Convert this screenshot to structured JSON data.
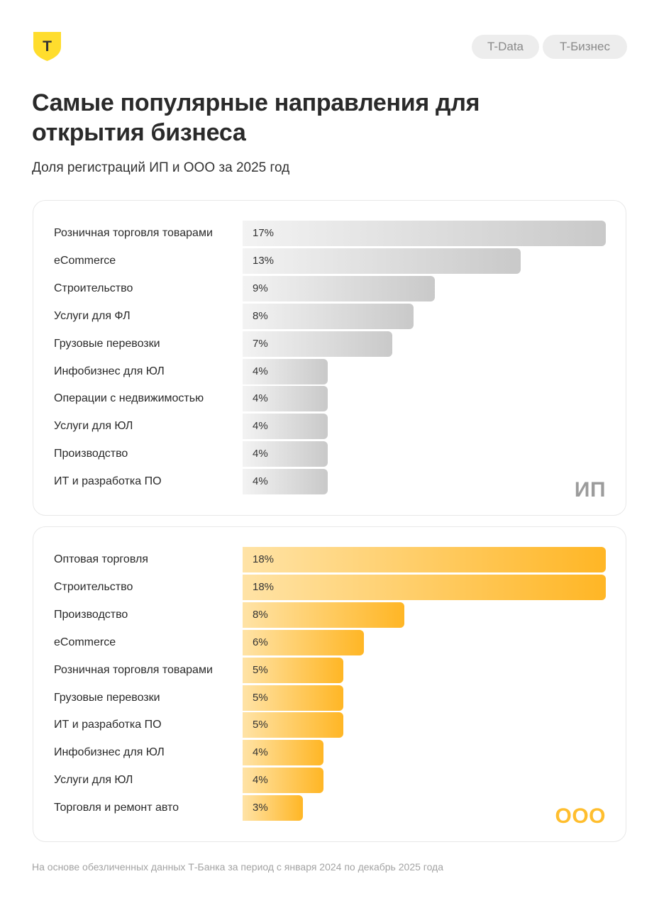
{
  "brand": {
    "logo_letter": "T",
    "logo_color": "#ffdd2d"
  },
  "tags": [
    "T-Data",
    "T-Бизнес"
  ],
  "title": "Самые популярные направления для открытия бизнеса",
  "subtitle": "Доля регистраций ИП и ООО за 2025 год",
  "chart_data": [
    {
      "type": "bar",
      "orientation": "horizontal",
      "title": "ИП",
      "categories": [
        "Розничная торговля товарами",
        "eCommerce",
        "Строительство",
        "Услуги для ФЛ",
        "Грузовые перевозки",
        "Инфобизнес для ЮЛ",
        "Операции с недвижимостью",
        "Услуги для ЮЛ",
        "Производство",
        "ИТ и разработка ПО"
      ],
      "values": [
        17,
        13,
        9,
        8,
        7,
        4,
        4,
        4,
        4,
        4
      ],
      "value_labels": [
        "17%",
        "13%",
        "9%",
        "8%",
        "7%",
        "4%",
        "4%",
        "4%",
        "4%",
        "4%"
      ],
      "unit": "%",
      "color": "#c9c9c9"
    },
    {
      "type": "bar",
      "orientation": "horizontal",
      "title": "ООО",
      "categories": [
        "Оптовая торговля",
        "Строительство",
        "Производство",
        "eCommerce",
        "Розничная торговля товарами",
        "Грузовые перевозки",
        "ИТ и разработка ПО",
        "Инфобизнес для ЮЛ",
        "Услуги для ЮЛ",
        "Торговля и ремонт авто"
      ],
      "values": [
        18,
        18,
        8,
        6,
        5,
        5,
        5,
        4,
        4,
        3
      ],
      "value_labels": [
        "18%",
        "18%",
        "8%",
        "6%",
        "5%",
        "5%",
        "5%",
        "4%",
        "4%",
        "3%"
      ],
      "unit": "%",
      "color": "#ffb625"
    }
  ],
  "footnote": "На основе обезличенных данных Т-Банка за период с января 2024 по декабрь 2025 года"
}
